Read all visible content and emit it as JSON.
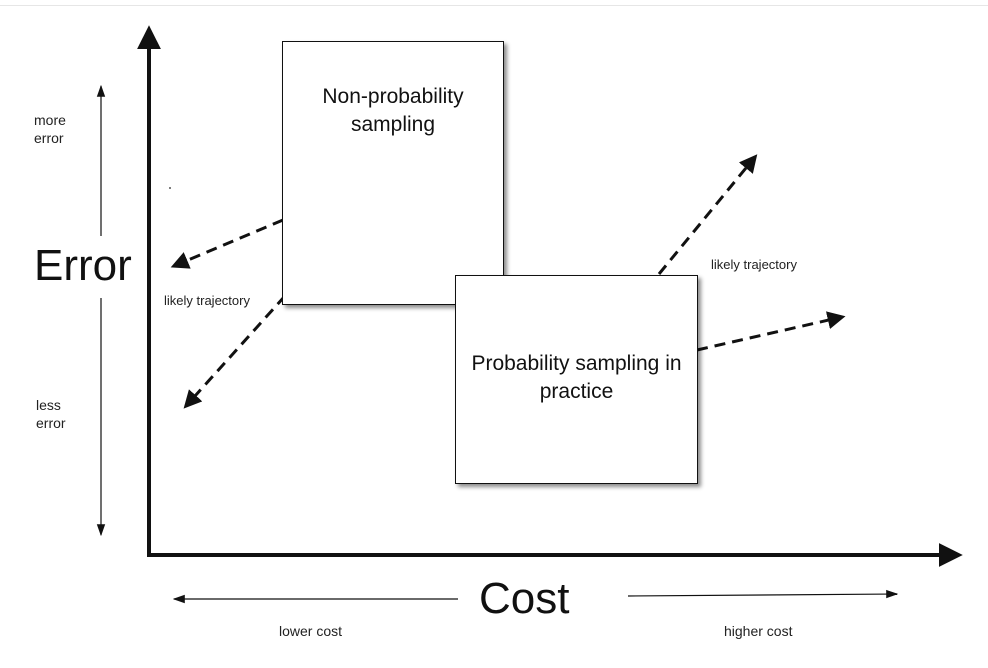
{
  "y_axis": {
    "title": "Error",
    "top_label": "more error",
    "bottom_label": "less error"
  },
  "x_axis": {
    "title": "Cost",
    "left_label": "lower cost",
    "right_label": "higher cost"
  },
  "boxes": {
    "non_probability": {
      "label": "Non-probability sampling"
    },
    "probability": {
      "label": "Probability sampling in practice"
    }
  },
  "annotations": {
    "left_trajectory": "likely trajectory",
    "right_trajectory": "likely trajectory"
  }
}
